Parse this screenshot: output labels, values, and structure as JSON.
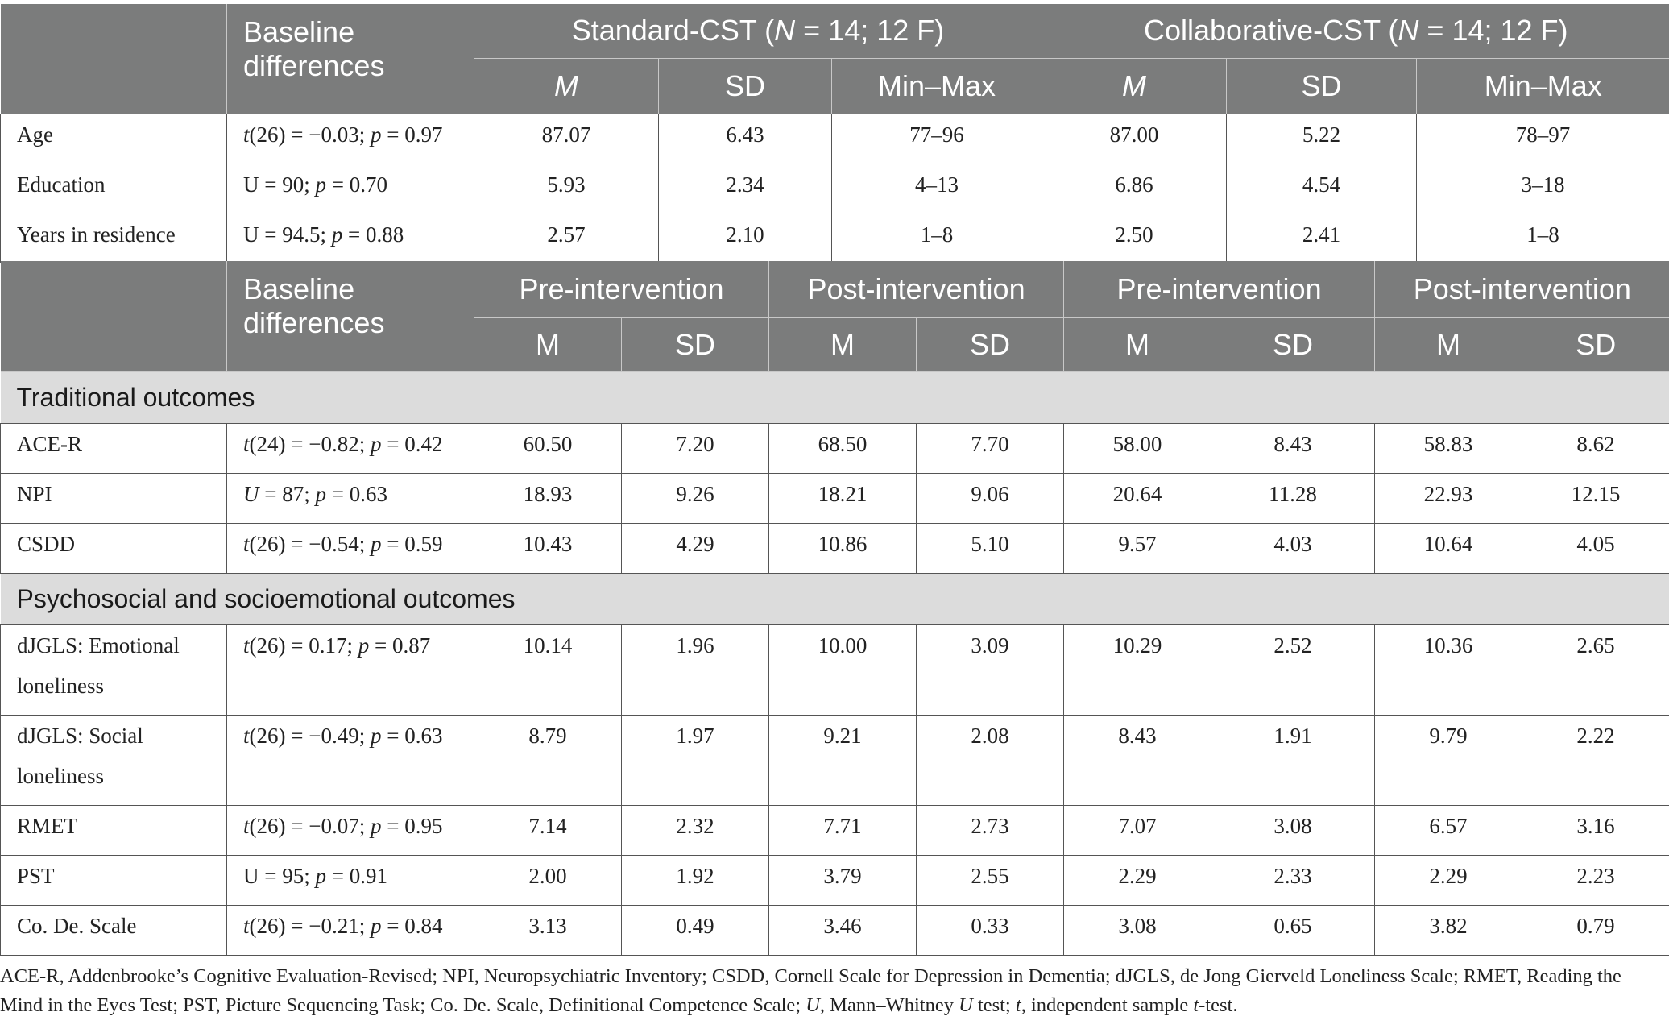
{
  "demographics": {
    "header": {
      "baseline": "Baseline differences",
      "group1_prefix": "Standard-CST (",
      "group1_n": "N",
      "group1_suffix": " = 14; 12 F)",
      "group2_prefix": "Collaborative-CST (",
      "group2_n": "N",
      "group2_suffix": " = 14; 12 F)",
      "m": "M",
      "sd": "SD",
      "minmax": "Min–Max"
    },
    "rows": [
      {
        "label": "Age",
        "stat_pre": "t",
        "stat_mid": "(26) = −0.03; ",
        "stat_p": "p",
        "stat_end": " = 0.97",
        "g1_m": "87.07",
        "g1_sd": "6.43",
        "g1_range": "77–96",
        "g2_m": "87.00",
        "g2_sd": "5.22",
        "g2_range": "78–97"
      },
      {
        "label": "Education",
        "stat_pre": "",
        "stat_mid": "U = 90; ",
        "stat_p": "p",
        "stat_end": " = 0.70",
        "g1_m": "5.93",
        "g1_sd": "2.34",
        "g1_range": "4–13",
        "g2_m": "6.86",
        "g2_sd": "4.54",
        "g2_range": "3–18"
      },
      {
        "label": "Years in residence",
        "stat_pre": "",
        "stat_mid": "U = 94.5; ",
        "stat_p": "p",
        "stat_end": " = 0.88",
        "g1_m": "2.57",
        "g1_sd": "2.10",
        "g1_range": "1–8",
        "g2_m": "2.50",
        "g2_sd": "2.41",
        "g2_range": "1–8"
      }
    ]
  },
  "outcomes": {
    "header": {
      "baseline": "Baseline differences",
      "pre": "Pre-intervention",
      "post": "Post-intervention",
      "m": "M",
      "sd": "SD"
    },
    "sections": [
      {
        "title": "Traditional outcomes",
        "rows": [
          {
            "label": "ACE-R",
            "stat_pre": "t",
            "stat_mid": "(24) = −0.82; ",
            "stat_p": "p",
            "stat_end": " = 0.42",
            "v": [
              "60.50",
              "7.20",
              "68.50",
              "7.70",
              "58.00",
              "8.43",
              "58.83",
              "8.62"
            ]
          },
          {
            "label": "NPI",
            "stat_pre": "U",
            "stat_mid": " = 87; ",
            "stat_p": "p",
            "stat_end": " = 0.63",
            "v": [
              "18.93",
              "9.26",
              "18.21",
              "9.06",
              "20.64",
              "11.28",
              "22.93",
              "12.15"
            ]
          },
          {
            "label": "CSDD",
            "stat_pre": "t",
            "stat_mid": "(26) = −0.54; ",
            "stat_p": "p",
            "stat_end": " = 0.59",
            "v": [
              "10.43",
              "4.29",
              "10.86",
              "5.10",
              "9.57",
              "4.03",
              "10.64",
              "4.05"
            ]
          }
        ]
      },
      {
        "title": "Psychosocial and socioemotional outcomes",
        "rows": [
          {
            "label": "dJGLS: Emotional loneliness",
            "stat_pre": "t",
            "stat_mid": "(26) = 0.17; ",
            "stat_p": "p",
            "stat_end": " = 0.87",
            "v": [
              "10.14",
              "1.96",
              "10.00",
              "3.09",
              "10.29",
              "2.52",
              "10.36",
              "2.65"
            ]
          },
          {
            "label": "dJGLS: Social loneliness",
            "stat_pre": "t",
            "stat_mid": "(26) = −0.49; ",
            "stat_p": "p",
            "stat_end": " = 0.63",
            "v": [
              "8.79",
              "1.97",
              "9.21",
              "2.08",
              "8.43",
              "1.91",
              "9.79",
              "2.22"
            ]
          },
          {
            "label": "RMET",
            "stat_pre": "t",
            "stat_mid": "(26) = −0.07; ",
            "stat_p": "p",
            "stat_end": " = 0.95",
            "v": [
              "7.14",
              "2.32",
              "7.71",
              "2.73",
              "7.07",
              "3.08",
              "6.57",
              "3.16"
            ]
          },
          {
            "label": "PST",
            "stat_pre": "",
            "stat_mid": "U = 95; ",
            "stat_p": "p",
            "stat_end": " = 0.91",
            "v": [
              "2.00",
              "1.92",
              "3.79",
              "2.55",
              "2.29",
              "2.33",
              "2.29",
              "2.23"
            ]
          },
          {
            "label": "Co. De. Scale",
            "stat_pre": "t",
            "stat_mid": "(26) = −0.21; ",
            "stat_p": "p",
            "stat_end": " = 0.84",
            "v": [
              "3.13",
              "0.49",
              "3.46",
              "0.33",
              "3.08",
              "0.65",
              "3.82",
              "0.79"
            ]
          }
        ]
      }
    ]
  },
  "footnote": {
    "part1": "ACE-R, Addenbrooke’s Cognitive Evaluation-Revised; NPI, Neuropsychiatric Inventory; CSDD, Cornell Scale for Depression in Dementia; dJGLS, de Jong Gierveld Loneliness Scale; RMET, Reading the Mind in the Eyes Test; PST, Picture Sequencing Task; Co. De. Scale, Definitional Competence Scale; ",
    "u_sym": "U",
    "part2": ", Mann–Whitney ",
    "u_sym2": "U",
    "part3": " test; ",
    "t_sym": "t",
    "part4": ", independent sample ",
    "t_sym2": "t",
    "part5": "-test."
  }
}
